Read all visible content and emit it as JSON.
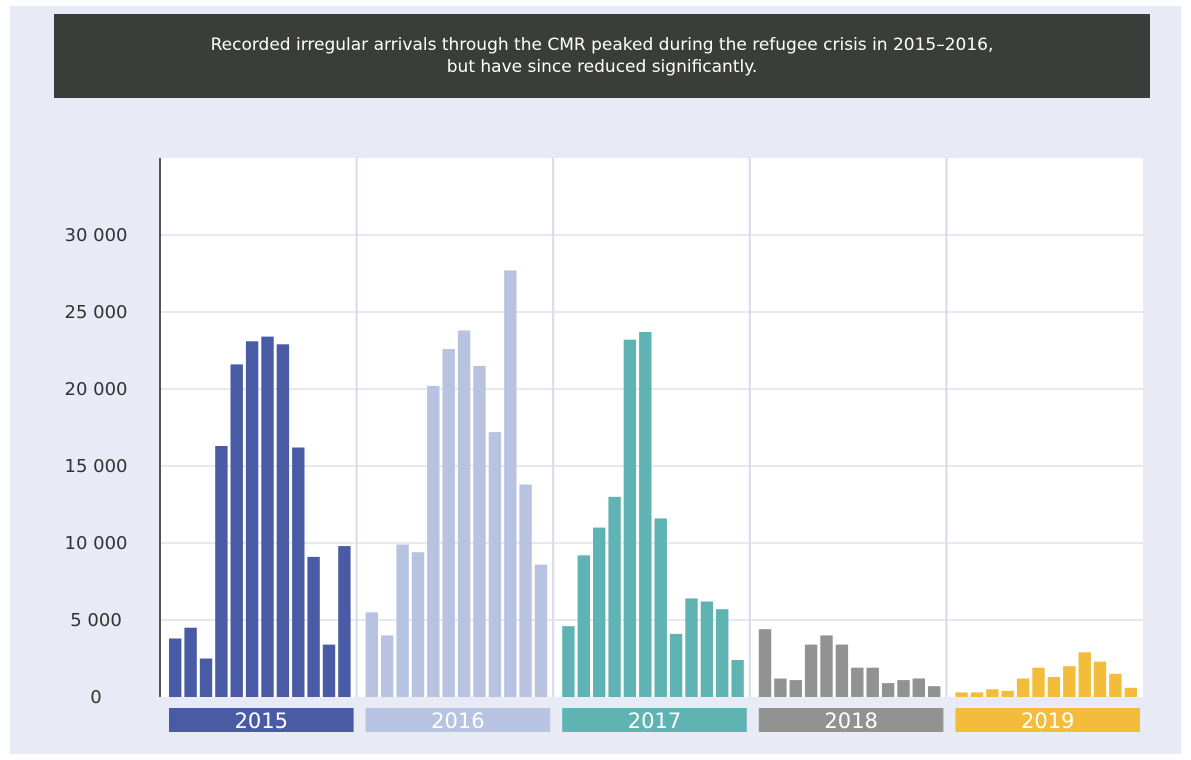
{
  "banner": {
    "line1": "Recorded irregular arrivals through the CMR peaked during the refugee crisis in 2015–2016,",
    "line2": "but have since reduced significantly."
  },
  "chart_data": {
    "type": "bar",
    "title": "",
    "xlabel": "",
    "ylabel": "",
    "ylim": [
      0,
      35000
    ],
    "yticks": [
      0,
      5000,
      10000,
      15000,
      20000,
      25000,
      30000
    ],
    "ytick_labels": [
      "0",
      "5 000",
      "10 000",
      "15 000",
      "20 000",
      "25 000",
      "30 000"
    ],
    "grid": true,
    "series": [
      {
        "name": "2015",
        "color": "#4a5ba5",
        "values": [
          3800,
          4500,
          2500,
          16300,
          21600,
          23100,
          23400,
          22900,
          16200,
          9100,
          3400,
          9800
        ]
      },
      {
        "name": "2016",
        "color": "#b8c3e2",
        "values": [
          5500,
          4000,
          9900,
          9400,
          20200,
          22600,
          23800,
          21500,
          17200,
          27700,
          13800,
          8600
        ]
      },
      {
        "name": "2017",
        "color": "#5fb3b2",
        "values": [
          4600,
          9200,
          11000,
          13000,
          23200,
          23700,
          11600,
          4100,
          6400,
          6200,
          5700,
          2400
        ]
      },
      {
        "name": "2018",
        "color": "#929292",
        "values": [
          4400,
          1200,
          1100,
          3400,
          4000,
          3400,
          1900,
          1900,
          900,
          1100,
          1200,
          700
        ]
      },
      {
        "name": "2019",
        "color": "#f3bd3b",
        "values": [
          300,
          300,
          500,
          400,
          1200,
          1900,
          1300,
          2000,
          2900,
          2300,
          1500,
          600
        ]
      }
    ]
  }
}
